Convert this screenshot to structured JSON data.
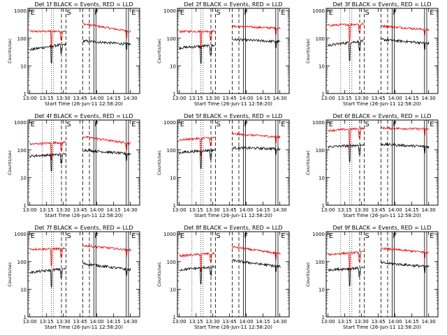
{
  "chart_data": {
    "type": "line",
    "panels": [
      {
        "title": "Det 1f BLACK = Events, RED = LLD",
        "xticks": [
          "13:00",
          "13:15",
          "13:30",
          "13:45",
          "14:00",
          "14:15",
          "14:30"
        ],
        "red_levels": {
          "pre": 175,
          "mid": 180,
          "post": 330,
          "tail": 175
        },
        "black_levels": {
          "pre": 38,
          "mid": 60,
          "post": 80,
          "tail": 60
        }
      },
      {
        "title": "Det 2f BLACK = Events, RED = LLD",
        "xticks": [
          "13:00",
          "13:15",
          "13:30",
          "13:45",
          "14:00",
          "14:15",
          "14:30"
        ],
        "red_levels": {
          "pre": 175,
          "mid": 180,
          "post": 270,
          "tail": 230
        },
        "black_levels": {
          "pre": 45,
          "mid": 55,
          "post": 90,
          "tail": 75
        }
      },
      {
        "title": "Det 3f BLACK = Events, RED = LLD",
        "xticks": [
          "13:00",
          "13:15",
          "13:30",
          "13:45",
          "14:00",
          "14:15",
          "14:30"
        ],
        "red_levels": {
          "pre": 290,
          "mid": 330,
          "post": 280,
          "tail": 200
        },
        "black_levels": {
          "pre": 55,
          "mid": 80,
          "post": 90,
          "tail": 65
        }
      },
      {
        "title": "Det 4f BLACK = Events, RED = LLD",
        "xticks": [
          "13:00",
          "13:15",
          "13:30",
          "13:45",
          "14:00",
          "14:15",
          "14:30"
        ],
        "red_levels": {
          "pre": 160,
          "mid": 190,
          "post": 300,
          "tail": 170
        },
        "black_levels": {
          "pre": 60,
          "mid": 70,
          "post": 100,
          "tail": 70
        }
      },
      {
        "title": "Det 5f BLACK = Events, RED = LLD",
        "xticks": [
          "13:00",
          "13:15",
          "13:30",
          "13:45",
          "14:00",
          "14:15",
          "14:30"
        ],
        "red_levels": {
          "pre": 230,
          "mid": 280,
          "post": 380,
          "tail": 290
        },
        "black_levels": {
          "pre": 80,
          "mid": 100,
          "post": 120,
          "tail": 110
        }
      },
      {
        "title": "Det 6f BLACK = Events, RED = LLD",
        "xticks": [
          "13:00",
          "13:15",
          "13:30",
          "13:45",
          "14:00",
          "14:15",
          "14:30"
        ],
        "red_levels": {
          "pre": 500,
          "mid": 600,
          "post": 620,
          "tail": 560
        },
        "black_levels": {
          "pre": 130,
          "mid": 150,
          "post": 160,
          "tail": 130
        }
      },
      {
        "title": "Det 7f BLACK = Events, RED = LLD",
        "xticks": [
          "13:00",
          "13:15",
          "13:30",
          "13:45",
          "14:00",
          "14:15",
          "14:30"
        ],
        "red_levels": {
          "pre": 280,
          "mid": 290,
          "post": 380,
          "tail": 260
        },
        "black_levels": {
          "pre": 40,
          "mid": 55,
          "post": 85,
          "tail": 50
        }
      },
      {
        "title": "Det 8f BLACK = Events, RED = LLD",
        "xticks": [
          "13:00",
          "13:15",
          "13:30",
          "13:45",
          "14:00",
          "14:15",
          "14:30"
        ],
        "red_levels": {
          "pre": 160,
          "mid": 200,
          "post": 340,
          "tail": 190
        },
        "black_levels": {
          "pre": 50,
          "mid": 65,
          "post": 110,
          "tail": 65
        }
      },
      {
        "title": "Det 9f BLACK = Events, RED = LLD",
        "xticks": [
          "13:00",
          "13:15",
          "13:30",
          "13:45",
          "14:00",
          "14:15",
          "14:30"
        ],
        "red_levels": {
          "pre": 180,
          "mid": 220,
          "post": 300,
          "tail": 210
        },
        "black_levels": {
          "pre": 50,
          "mid": 60,
          "post": 90,
          "tail": 65
        }
      }
    ],
    "xlabel": "Start Time (26-Jun-11 12:58:20)",
    "ylabel": "Counts/sec",
    "x_range_minutes": [
      0,
      100
    ],
    "ylim": [
      1,
      1200
    ],
    "y_scale": "log",
    "yticks": [
      "1",
      "10",
      "100",
      "1000"
    ],
    "event_markers": {
      "E_start_min": 1.7,
      "S_min": 34,
      "F_min": 59,
      "E_end_min": 92,
      "dotted_min": [
        13,
        21,
        23
      ],
      "dashed_min": [
        30,
        34,
        49,
        55
      ],
      "solid_min": [
        59,
        61,
        88,
        90
      ]
    },
    "gaps_min": [
      [
        33.5,
        49.5
      ]
    ],
    "series": [
      {
        "name": "BLACK = Events",
        "color": "#000000"
      },
      {
        "name": "RED = LLD",
        "color": "#ee0000"
      }
    ]
  }
}
